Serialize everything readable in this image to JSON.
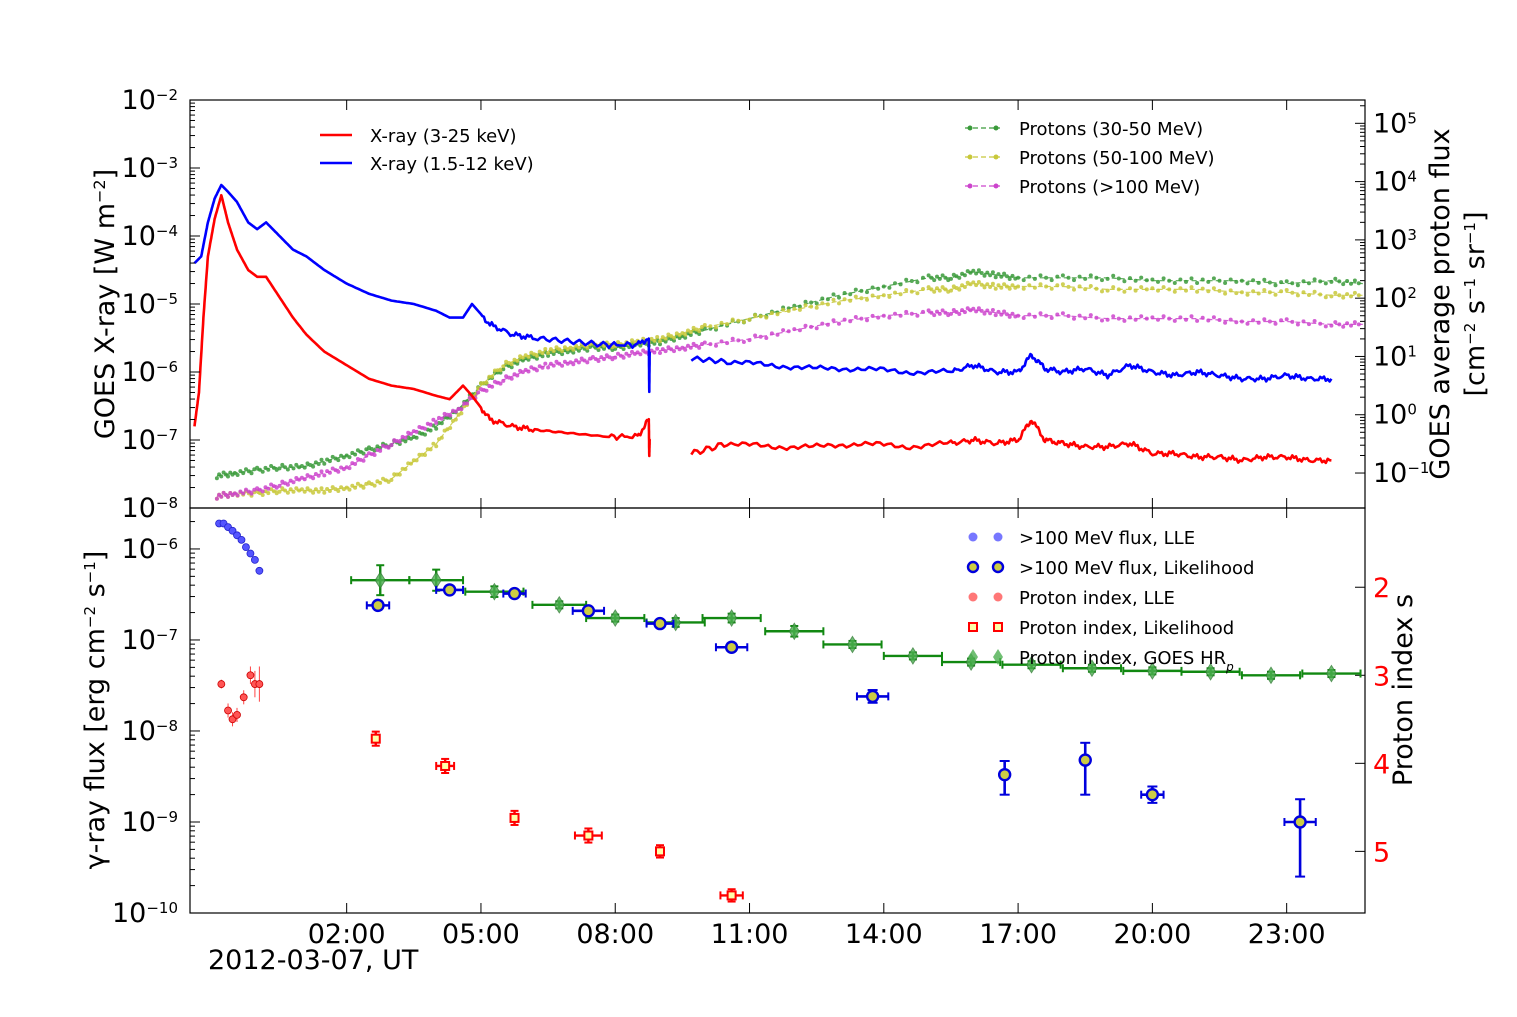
{
  "chart_data": [
    {
      "type": "line",
      "panel": "top",
      "ylabel_left": "GOES X-ray [W m",
      "ylabel_left_exp": "−2",
      "ylabel_left_tail": "]",
      "ylabel_right_line1": "GOES average proton flux",
      "ylabel_right_line2": "[cm",
      "ylabel_right_parts": [
        "[cm",
        "−2",
        " s",
        "−1",
        " sr",
        "−1",
        "]"
      ],
      "left_axis": {
        "scale": "log",
        "ylim_exp": [
          -8,
          -2
        ],
        "ticks": [
          -8,
          -7,
          -6,
          -5,
          -4,
          -3,
          -2
        ]
      },
      "right_axis": {
        "scale": "log",
        "ylim_exp": [
          -1.6,
          5.4
        ],
        "ticks": [
          -1,
          0,
          1,
          2,
          3,
          4,
          5
        ]
      },
      "xlim_hours": [
        -1.5,
        24.75
      ],
      "legend_left": [
        {
          "label": "X-ray (3-25 keV)",
          "color": "#ff0000"
        },
        {
          "label": "X-ray (1.5-12 keV)",
          "color": "#0000ff"
        }
      ],
      "legend_right": [
        {
          "label": "Protons (30-50 MeV)",
          "color": "#3a9a3a"
        },
        {
          "label": "Protons (50-100 MeV)",
          "color": "#c8c83a"
        },
        {
          "label": "Protons (>100 MeV)",
          "color": "#cc44cc"
        }
      ],
      "series": [
        {
          "name": "X-ray (1.5-12 keV)",
          "axis": "left",
          "color": "#0000ff",
          "hours": [
            -1.4,
            -1.25,
            -1.1,
            -0.95,
            -0.8,
            -0.65,
            -0.45,
            -0.2,
            0.0,
            0.2,
            0.5,
            0.8,
            1.1,
            1.5,
            2.0,
            2.5,
            3.0,
            3.5,
            4.0,
            4.3,
            4.6,
            4.8,
            5.2,
            5.7,
            6.2,
            7.0,
            7.8,
            8.5,
            8.75,
            8.76,
            8.77
          ],
          "log": [
            -4.4,
            -4.3,
            -3.8,
            -3.45,
            -3.25,
            -3.35,
            -3.5,
            -3.8,
            -3.9,
            -3.8,
            -4.0,
            -4.2,
            -4.3,
            -4.5,
            -4.7,
            -4.85,
            -4.95,
            -5.0,
            -5.1,
            -5.2,
            -5.2,
            -5.0,
            -5.3,
            -5.45,
            -5.5,
            -5.55,
            -5.6,
            -5.6,
            -5.5,
            -6.3,
            -5.7
          ]
        },
        {
          "name": "X-ray (1.5-12 keV) late",
          "axis": "left",
          "color": "#0000ff",
          "hours": [
            9.7,
            10.5,
            11.5,
            12.5,
            13.5,
            14.5,
            15.5,
            16.0,
            16.5,
            17.0,
            17.3,
            17.6,
            18.0,
            18.5,
            19.0,
            19.5,
            20.0,
            20.5,
            21.0,
            21.5,
            22.0,
            22.5,
            23.0,
            23.5,
            24.0
          ],
          "log": [
            -5.8,
            -5.85,
            -5.9,
            -5.95,
            -5.95,
            -6.0,
            -6.0,
            -5.9,
            -6.0,
            -6.0,
            -5.75,
            -5.95,
            -6.0,
            -5.95,
            -6.05,
            -5.9,
            -6.0,
            -6.05,
            -6.0,
            -6.05,
            -6.1,
            -6.1,
            -6.05,
            -6.1,
            -6.1
          ]
        },
        {
          "name": "X-ray (3-25 keV)",
          "axis": "left",
          "color": "#ff0000",
          "hours": [
            -1.4,
            -1.3,
            -1.2,
            -1.1,
            -0.95,
            -0.8,
            -0.65,
            -0.45,
            -0.2,
            0.0,
            0.2,
            0.5,
            0.8,
            1.1,
            1.5,
            2.0,
            2.5,
            3.0,
            3.5,
            4.0,
            4.3,
            4.6,
            4.8,
            5.2,
            5.7,
            6.2,
            7.0,
            7.8,
            8.5,
            8.75,
            8.76,
            8.77
          ],
          "log": [
            -6.8,
            -6.3,
            -5.2,
            -4.3,
            -3.75,
            -3.4,
            -3.8,
            -4.2,
            -4.5,
            -4.6,
            -4.6,
            -4.9,
            -5.2,
            -5.45,
            -5.7,
            -5.9,
            -6.1,
            -6.2,
            -6.25,
            -6.35,
            -6.4,
            -6.2,
            -6.35,
            -6.7,
            -6.8,
            -6.85,
            -6.9,
            -6.95,
            -6.95,
            -6.7,
            -7.25,
            -7.0
          ]
        },
        {
          "name": "X-ray (3-25 keV) late",
          "axis": "left",
          "color": "#ff0000",
          "hours": [
            9.7,
            10.5,
            11.5,
            12.5,
            13.5,
            14.5,
            15.5,
            16.0,
            16.5,
            17.0,
            17.3,
            17.6,
            18.0,
            18.5,
            19.0,
            19.5,
            20.0,
            20.5,
            21.0,
            21.5,
            22.0,
            22.5,
            23.0,
            23.5,
            24.0
          ],
          "log": [
            -7.2,
            -7.05,
            -7.1,
            -7.1,
            -7.05,
            -7.1,
            -7.05,
            -7.0,
            -7.05,
            -7.0,
            -6.7,
            -7.0,
            -7.05,
            -7.1,
            -7.1,
            -7.05,
            -7.2,
            -7.2,
            -7.25,
            -7.25,
            -7.3,
            -7.25,
            -7.25,
            -7.3,
            -7.3
          ]
        },
        {
          "name": "Protons (30-50 MeV)",
          "axis": "right",
          "color": "#3a9a3a",
          "hours": [
            -0.9,
            -0.5,
            0.0,
            0.5,
            1.0,
            1.5,
            2.0,
            2.5,
            3.0,
            3.5,
            4.0,
            4.5,
            5.0,
            5.5,
            6.0,
            6.5,
            7.0,
            7.5,
            8.0,
            8.5,
            9.0,
            9.5,
            10.0,
            11.0,
            12.0,
            13.0,
            14.0,
            15.0,
            15.5,
            16.0,
            16.5,
            17.0,
            18.0,
            19.0,
            20.0,
            21.0,
            22.0,
            23.0,
            24.0,
            24.7
          ],
          "log": [
            -1.05,
            -1.0,
            -0.95,
            -0.9,
            -0.9,
            -0.8,
            -0.7,
            -0.6,
            -0.5,
            -0.4,
            -0.2,
            0.1,
            0.5,
            0.8,
            0.95,
            1.05,
            1.1,
            1.15,
            1.15,
            1.2,
            1.25,
            1.35,
            1.45,
            1.65,
            1.85,
            2.05,
            2.2,
            2.35,
            2.35,
            2.45,
            2.4,
            2.35,
            2.35,
            2.35,
            2.3,
            2.3,
            2.3,
            2.25,
            2.3,
            2.25
          ]
        },
        {
          "name": "Protons (50-100 MeV)",
          "axis": "right",
          "color": "#c8c83a",
          "hours": [
            -0.9,
            -0.5,
            0.0,
            0.5,
            1.0,
            1.5,
            2.0,
            2.5,
            3.0,
            3.5,
            4.0,
            4.5,
            5.0,
            5.5,
            6.0,
            6.5,
            7.0,
            7.5,
            8.0,
            8.5,
            9.0,
            9.5,
            10.0,
            11.0,
            12.0,
            13.0,
            14.0,
            15.0,
            15.5,
            16.0,
            16.5,
            17.0,
            18.0,
            19.0,
            20.0,
            21.0,
            22.0,
            23.0,
            24.0,
            24.7
          ],
          "log": [
            -1.4,
            -1.35,
            -1.35,
            -1.3,
            -1.3,
            -1.3,
            -1.25,
            -1.2,
            -1.1,
            -0.8,
            -0.5,
            0.0,
            0.5,
            0.85,
            1.0,
            1.1,
            1.15,
            1.2,
            1.2,
            1.25,
            1.3,
            1.4,
            1.5,
            1.65,
            1.8,
            1.95,
            2.05,
            2.15,
            2.15,
            2.25,
            2.2,
            2.2,
            2.2,
            2.15,
            2.15,
            2.15,
            2.1,
            2.1,
            2.05,
            2.05
          ]
        },
        {
          "name": "Protons (>100 MeV)",
          "axis": "right",
          "color": "#cc44cc",
          "hours": [
            -0.9,
            -0.5,
            0.0,
            0.5,
            1.0,
            1.5,
            2.0,
            2.5,
            3.0,
            3.5,
            4.0,
            4.5,
            5.0,
            5.5,
            6.0,
            6.5,
            7.0,
            7.5,
            8.0,
            8.5,
            9.0,
            9.5,
            10.0,
            11.0,
            12.0,
            13.0,
            14.0,
            15.0,
            15.5,
            16.0,
            16.5,
            17.0,
            18.0,
            19.0,
            20.0,
            21.0,
            22.0,
            23.0,
            24.0,
            24.7
          ],
          "log": [
            -1.4,
            -1.35,
            -1.3,
            -1.2,
            -1.1,
            -1.0,
            -0.9,
            -0.7,
            -0.5,
            -0.3,
            -0.1,
            0.1,
            0.4,
            0.6,
            0.75,
            0.85,
            0.9,
            0.95,
            1.0,
            1.05,
            1.1,
            1.15,
            1.2,
            1.3,
            1.45,
            1.6,
            1.7,
            1.75,
            1.75,
            1.8,
            1.75,
            1.7,
            1.7,
            1.65,
            1.65,
            1.65,
            1.6,
            1.6,
            1.55,
            1.55
          ]
        }
      ]
    },
    {
      "type": "scatter",
      "panel": "bottom",
      "ylabel_left_parts": [
        "γ-ray flux [erg cm",
        "−2",
        " s",
        "−1",
        "]"
      ],
      "ylabel_right": "Proton index s",
      "left_axis": {
        "scale": "log",
        "ylim_exp": [
          -10,
          -5.55
        ],
        "ticks": [
          -10,
          -9,
          -8,
          -7,
          -6
        ]
      },
      "right_axis": {
        "scale": "linear",
        "ylim": [
          5.7,
          1.1
        ],
        "ticks": [
          2,
          3,
          4,
          5
        ],
        "color": "#ff0000"
      },
      "xlim_hours": [
        -1.5,
        24.75
      ],
      "x_ticks_hours": [
        2,
        5,
        8,
        11,
        14,
        17,
        20,
        23
      ],
      "x_tick_labels": [
        "02:00",
        "05:00",
        "08:00",
        "11:00",
        "14:00",
        "17:00",
        "20:00",
        "23:00"
      ],
      "date_label": "2012-03-07, UT",
      "legend": [
        {
          "label": ">100 MeV flux, LLE",
          "marker": "lle-blue"
        },
        {
          "label": ">100 MeV flux, Likelihood",
          "marker": "lik-blue"
        },
        {
          "label": "Proton index, LLE",
          "marker": "lle-red"
        },
        {
          "label": "Proton index, Likelihood",
          "marker": "lik-red"
        },
        {
          "label": "Proton index, GOES HR",
          "sub": "p",
          "marker": "goes-green"
        }
      ],
      "lle_flux": {
        "hours": [
          -0.85,
          -0.75,
          -0.65,
          -0.55,
          -0.45,
          -0.35,
          -0.25,
          -0.15,
          -0.05,
          0.05
        ],
        "log": [
          -5.72,
          -5.72,
          -5.76,
          -5.8,
          -5.85,
          -5.9,
          -5.98,
          -6.05,
          -6.12,
          -6.24
        ]
      },
      "lik_flux": [
        {
          "h": 2.7,
          "log": -6.62,
          "xerr": 0.25,
          "ylo": 0.03,
          "yhi": 0.03
        },
        {
          "h": 4.3,
          "log": -6.45,
          "xerr": 0.3,
          "ylo": 0.02,
          "yhi": 0.02
        },
        {
          "h": 5.75,
          "log": -6.49,
          "xerr": 0.25,
          "ylo": 0.02,
          "yhi": 0.02
        },
        {
          "h": 7.4,
          "log": -6.68,
          "xerr": 0.35,
          "ylo": 0.02,
          "yhi": 0.02
        },
        {
          "h": 9.0,
          "log": -6.82,
          "xerr": 0.3,
          "ylo": 0.02,
          "yhi": 0.02
        },
        {
          "h": 10.6,
          "log": -7.08,
          "xerr": 0.35,
          "ylo": 0.04,
          "yhi": 0.04
        },
        {
          "h": 13.75,
          "log": -7.62,
          "xerr": 0.35,
          "ylo": 0.07,
          "yhi": 0.07
        },
        {
          "h": 16.7,
          "log": -8.48,
          "xerr": 0.0,
          "ylo": 0.22,
          "yhi": 0.15
        },
        {
          "h": 18.5,
          "log": -8.32,
          "xerr": 0.0,
          "ylo": 0.38,
          "yhi": 0.19
        },
        {
          "h": 20.0,
          "log": -8.7,
          "xerr": 0.25,
          "ylo": 0.09,
          "yhi": 0.09
        },
        {
          "h": 23.3,
          "log": -9.0,
          "xerr": 0.35,
          "ylo": 0.6,
          "yhi": 0.25
        }
      ],
      "lle_index": [
        {
          "h": -0.8,
          "s": 3.1,
          "err": 0.05
        },
        {
          "h": -0.65,
          "s": 3.4,
          "err": 0.08
        },
        {
          "h": -0.55,
          "s": 3.5,
          "err": 0.08
        },
        {
          "h": -0.45,
          "s": 3.45,
          "err": 0.08
        },
        {
          "h": -0.3,
          "s": 3.25,
          "err": 0.08
        },
        {
          "h": -0.15,
          "s": 3.0,
          "err": 0.1
        },
        {
          "h": -0.05,
          "s": 3.1,
          "err": 0.15
        },
        {
          "h": 0.05,
          "s": 3.1,
          "err": 0.2
        }
      ],
      "lik_index": [
        {
          "h": 2.65,
          "s": 3.72,
          "xerr": 0.0,
          "err": 0.08
        },
        {
          "h": 4.2,
          "s": 4.03,
          "xerr": 0.2,
          "err": 0.08
        },
        {
          "h": 5.75,
          "s": 4.62,
          "xerr": 0.0,
          "err": 0.08
        },
        {
          "h": 7.4,
          "s": 4.82,
          "xerr": 0.3,
          "err": 0.08
        },
        {
          "h": 9.0,
          "s": 5.0,
          "xerr": 0.0,
          "err": 0.07
        },
        {
          "h": 10.6,
          "s": 5.5,
          "xerr": 0.25,
          "err": 0.07
        }
      ],
      "goes_index": [
        {
          "h": 2.75,
          "s": 1.92,
          "xerr": 0.65,
          "err": 0.17
        },
        {
          "h": 4.0,
          "s": 1.92,
          "xerr": 0.6,
          "err": 0.12
        },
        {
          "h": 5.3,
          "s": 2.05,
          "xerr": 0.65,
          "err": 0.06
        },
        {
          "h": 6.75,
          "s": 2.2,
          "xerr": 0.6,
          "err": 0.04
        },
        {
          "h": 8.0,
          "s": 2.35,
          "xerr": 0.65,
          "err": 0.04
        },
        {
          "h": 9.35,
          "s": 2.4,
          "xerr": 0.65,
          "err": 0.05
        },
        {
          "h": 10.6,
          "s": 2.35,
          "xerr": 0.65,
          "err": 0.05
        },
        {
          "h": 12.0,
          "s": 2.5,
          "xerr": 0.65,
          "err": 0.06
        },
        {
          "h": 13.3,
          "s": 2.65,
          "xerr": 0.65,
          "err": 0.04
        },
        {
          "h": 14.65,
          "s": 2.78,
          "xerr": 0.65,
          "err": 0.04
        },
        {
          "h": 15.95,
          "s": 2.85,
          "xerr": 0.65,
          "err": 0.04
        },
        {
          "h": 17.3,
          "s": 2.88,
          "xerr": 0.65,
          "err": 0.04
        },
        {
          "h": 18.65,
          "s": 2.92,
          "xerr": 0.65,
          "err": 0.04
        },
        {
          "h": 20.0,
          "s": 2.95,
          "xerr": 0.65,
          "err": 0.04
        },
        {
          "h": 21.3,
          "s": 2.96,
          "xerr": 0.65,
          "err": 0.04
        },
        {
          "h": 22.65,
          "s": 3.0,
          "xerr": 0.65,
          "err": 0.04
        },
        {
          "h": 24.0,
          "s": 2.98,
          "xerr": 0.65,
          "err": 0.04
        }
      ]
    }
  ]
}
